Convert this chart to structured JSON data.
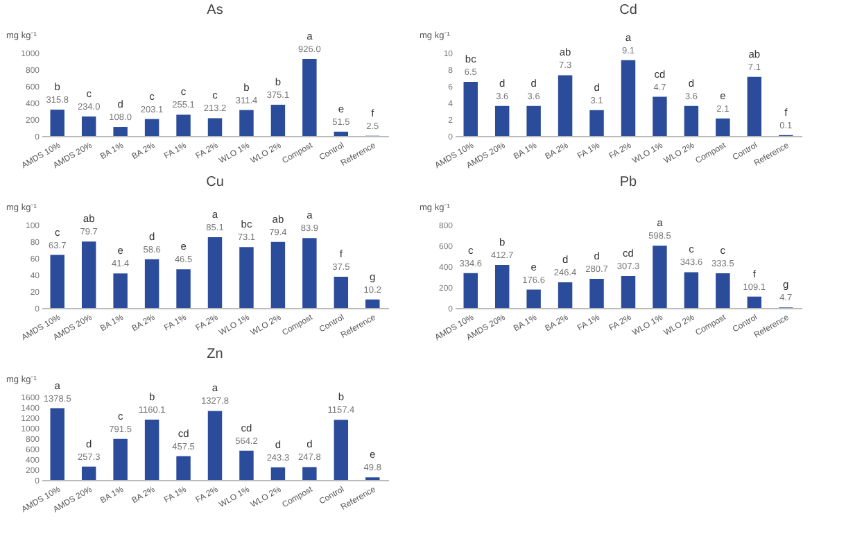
{
  "chart_data": [
    {
      "type": "bar",
      "title": "As",
      "ylabel": "mg kg⁻¹",
      "categories": [
        "AMDS 10%",
        "AMDS 20%",
        "BA 1%",
        "BA 2%",
        "FA 1%",
        "FA 2%",
        "WLO 1%",
        "WLO 2%",
        "Compost",
        "Control",
        "Reference"
      ],
      "values": [
        315.8,
        234,
        108,
        203.1,
        255.1,
        213.2,
        311.4,
        375.1,
        926,
        51.5,
        2.5
      ],
      "value_labels": [
        "315.8",
        "234.0",
        "108.0",
        "203.1",
        "255.1",
        "213.2",
        "311.4",
        "375.1",
        "926.0",
        "51.5",
        "2.5"
      ],
      "color": "#2b4c9b",
      "ylim": [
        0,
        1000
      ],
      "yticks": [
        0,
        200,
        400,
        600,
        800,
        1000
      ],
      "annotations": [
        {
          "text": "b",
          "x": "AMDS 10%",
          "y": 315.8
        },
        {
          "text": "c",
          "x": "AMDS 20%",
          "y": 234
        },
        {
          "text": "d",
          "x": "BA 1%",
          "y": 108
        },
        {
          "text": "c",
          "x": "BA 2%",
          "y": 203.1
        },
        {
          "text": "c",
          "x": "FA 1%",
          "y": 255.1
        },
        {
          "text": "c",
          "x": "FA 2%",
          "y": 213.2
        },
        {
          "text": "b",
          "x": "WLO 1%",
          "y": 311.4
        },
        {
          "text": "b",
          "x": "WLO 2%",
          "y": 375.1
        },
        {
          "text": "a",
          "x": "Compost",
          "y": 926
        },
        {
          "text": "e",
          "x": "Control",
          "y": 51.5
        },
        {
          "text": "f",
          "x": "Reference",
          "y": 2.5
        }
      ]
    },
    {
      "type": "bar",
      "title": "Cd",
      "ylabel": "mg kg⁻¹",
      "categories": [
        "AMDS 10%",
        "AMDS 20%",
        "BA 1%",
        "BA 2%",
        "FA 1%",
        "FA 2%",
        "WLO 1%",
        "WLO 2%",
        "Compost",
        "Control",
        "Reference"
      ],
      "values": [
        6.5,
        3.6,
        3.6,
        7.3,
        3.1,
        9.1,
        4.7,
        3.6,
        2.1,
        7.1,
        0.1
      ],
      "value_labels": [
        "6.5",
        "3.6",
        "3.6",
        "7.3",
        "3.1",
        "9.1",
        "4.7",
        "3.6",
        "2.1",
        "7.1",
        "0.1"
      ],
      "color": "#2b4c9b",
      "ylim": [
        0,
        10
      ],
      "yticks": [
        0,
        2,
        4,
        6,
        8,
        10
      ],
      "annotations": [
        {
          "text": "bc",
          "x": "AMDS 10%",
          "y": 6.5
        },
        {
          "text": "d",
          "x": "AMDS 20%",
          "y": 3.6
        },
        {
          "text": "d",
          "x": "BA 1%",
          "y": 3.6
        },
        {
          "text": "ab",
          "x": "BA 2%",
          "y": 7.3
        },
        {
          "text": "d",
          "x": "FA 1%",
          "y": 3.1
        },
        {
          "text": "a",
          "x": "FA 2%",
          "y": 9.1
        },
        {
          "text": "cd",
          "x": "WLO 1%",
          "y": 4.7
        },
        {
          "text": "d",
          "x": "WLO 2%",
          "y": 3.6
        },
        {
          "text": "e",
          "x": "Compost",
          "y": 2.1
        },
        {
          "text": "ab",
          "x": "Control",
          "y": 7.1
        },
        {
          "text": "f",
          "x": "Reference",
          "y": 0.1
        }
      ]
    },
    {
      "type": "bar",
      "title": "Cu",
      "ylabel": "mg kg⁻¹",
      "categories": [
        "AMDS 10%",
        "AMDS 20%",
        "BA 1%",
        "BA 2%",
        "FA 1%",
        "FA 2%",
        "WLO 1%",
        "WLO 2%",
        "Compost",
        "Control",
        "Reference"
      ],
      "values": [
        63.7,
        79.7,
        41.4,
        58.6,
        46.5,
        85.1,
        73.1,
        79.4,
        83.9,
        37.5,
        10.2
      ],
      "value_labels": [
        "63.7",
        "79.7",
        "41.4",
        "58.6",
        "46.5",
        "85.1",
        "73.1",
        "79.4",
        "83.9",
        "37.5",
        "10.2"
      ],
      "color": "#2b4c9b",
      "ylim": [
        0,
        100
      ],
      "yticks": [
        0,
        20,
        40,
        60,
        80,
        100
      ],
      "annotations": [
        {
          "text": "c",
          "x": "AMDS 10%",
          "y": 63.7
        },
        {
          "text": "ab",
          "x": "AMDS 20%",
          "y": 79.7
        },
        {
          "text": "e",
          "x": "BA 1%",
          "y": 41.4
        },
        {
          "text": "d",
          "x": "BA 2%",
          "y": 58.6
        },
        {
          "text": "e",
          "x": "FA 1%",
          "y": 46.5
        },
        {
          "text": "a",
          "x": "FA 2%",
          "y": 85.1
        },
        {
          "text": "bc",
          "x": "WLO 1%",
          "y": 73.1
        },
        {
          "text": "ab",
          "x": "WLO 2%",
          "y": 79.4
        },
        {
          "text": "a",
          "x": "Compost",
          "y": 83.9
        },
        {
          "text": "f",
          "x": "Control",
          "y": 37.5
        },
        {
          "text": "g",
          "x": "Reference",
          "y": 10.2
        }
      ]
    },
    {
      "type": "bar",
      "title": "Pb",
      "ylabel": "mg kg⁻¹",
      "categories": [
        "AMDS 10%",
        "AMDS 20%",
        "BA 1%",
        "BA 2%",
        "FA 1%",
        "FA 2%",
        "WLO 1%",
        "WLO 2%",
        "Compost",
        "Control",
        "Reference"
      ],
      "values": [
        334.6,
        412.7,
        176.6,
        246.4,
        280.7,
        307.3,
        598.5,
        343.6,
        333.5,
        109.1,
        4.7
      ],
      "value_labels": [
        "334.6",
        "412.7",
        "176.6",
        "246.4",
        "280.7",
        "307.3",
        "598.5",
        "343.6",
        "333.5",
        "109.1",
        "4.7"
      ],
      "color": "#2b4c9b",
      "ylim": [
        0,
        800
      ],
      "yticks": [
        0,
        200,
        400,
        600,
        800
      ],
      "annotations": [
        {
          "text": "c",
          "x": "AMDS 10%",
          "y": 334.6
        },
        {
          "text": "b",
          "x": "AMDS 20%",
          "y": 412.7
        },
        {
          "text": "e",
          "x": "BA 1%",
          "y": 176.6
        },
        {
          "text": "d",
          "x": "BA 2%",
          "y": 246.4
        },
        {
          "text": "d",
          "x": "FA 1%",
          "y": 280.7
        },
        {
          "text": "cd",
          "x": "FA 2%",
          "y": 307.3
        },
        {
          "text": "a",
          "x": "WLO 1%",
          "y": 598.5
        },
        {
          "text": "c",
          "x": "WLO 2%",
          "y": 343.6
        },
        {
          "text": "c",
          "x": "Compost",
          "y": 333.5
        },
        {
          "text": "f",
          "x": "Control",
          "y": 109.1
        },
        {
          "text": "g",
          "x": "Reference",
          "y": 4.7
        }
      ]
    },
    {
      "type": "bar",
      "title": "Zn",
      "ylabel": "mg kg⁻¹",
      "categories": [
        "AMDS 10%",
        "AMDS 20%",
        "BA 1%",
        "BA 2%",
        "FA 1%",
        "FA 2%",
        "WLO 1%",
        "WLO 2%",
        "Compost",
        "Control",
        "Reference"
      ],
      "values": [
        1378.5,
        257.3,
        791.5,
        1160.1,
        457.5,
        1327.8,
        564.2,
        243.3,
        247.8,
        1157.4,
        49.8
      ],
      "value_labels": [
        "1378.5",
        "257.3",
        "791.5",
        "1160.1",
        "457.5",
        "1327.8",
        "564.2",
        "243.3",
        "247.8",
        "1157.4",
        "49.8"
      ],
      "color": "#2b4c9b",
      "ylim": [
        0,
        1600
      ],
      "yticks": [
        0,
        200,
        400,
        600,
        800,
        1000,
        1200,
        1400,
        1600
      ],
      "annotations": [
        {
          "text": "a",
          "x": "AMDS 10%",
          "y": 1378.5
        },
        {
          "text": "d",
          "x": "AMDS 20%",
          "y": 257.3
        },
        {
          "text": "c",
          "x": "BA 1%",
          "y": 791.5
        },
        {
          "text": "b",
          "x": "BA 2%",
          "y": 1160.1
        },
        {
          "text": "cd",
          "x": "FA 1%",
          "y": 457.5
        },
        {
          "text": "a",
          "x": "FA 2%",
          "y": 1327.8
        },
        {
          "text": "cd",
          "x": "WLO 1%",
          "y": 564.2
        },
        {
          "text": "d",
          "x": "WLO 2%",
          "y": 243.3
        },
        {
          "text": "d",
          "x": "Compost",
          "y": 247.8
        },
        {
          "text": "b",
          "x": "Control",
          "y": 1157.4
        },
        {
          "text": "e",
          "x": "Reference",
          "y": 49.8
        }
      ]
    }
  ]
}
